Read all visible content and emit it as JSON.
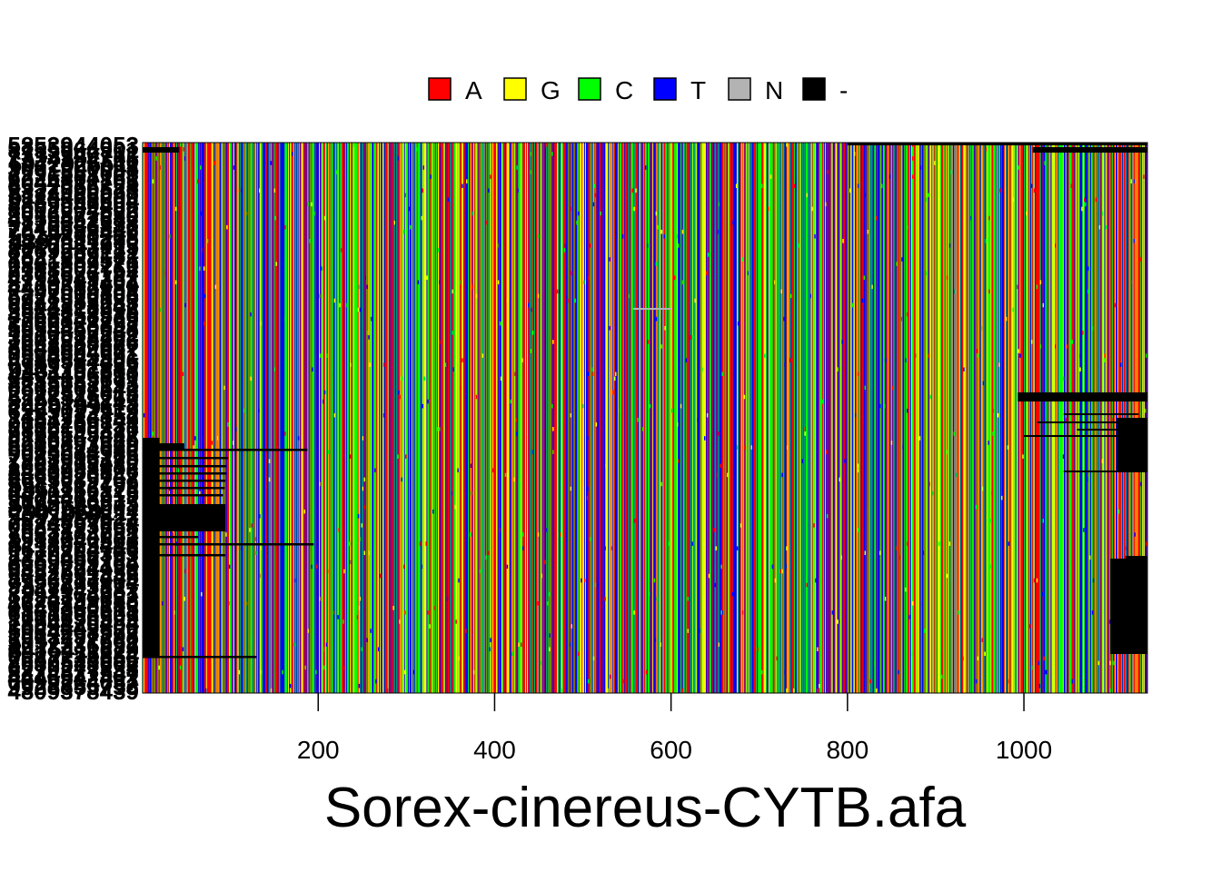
{
  "chart_data": {
    "type": "heatmap",
    "title": "Sorex-cinereus-CYTB.afa",
    "xlabel": "",
    "ylabel": "",
    "xlim": [
      1,
      1140
    ],
    "x_ticks": [
      200,
      400,
      600,
      800,
      1000
    ],
    "x_tick_labels": [
      "200",
      "400",
      "600",
      "800",
      "1000"
    ],
    "legend_position": "top-center",
    "legend": [
      {
        "symbol": "A",
        "color": "#ff0000"
      },
      {
        "symbol": "G",
        "color": "#ffff00"
      },
      {
        "symbol": "C",
        "color": "#00ff00"
      },
      {
        "symbol": "T",
        "color": "#0000ff"
      },
      {
        "symbol": "N",
        "color": "#b3b3b3"
      },
      {
        "symbol": "-",
        "color": "#000000"
      }
    ],
    "row_labels_note": "Sequence labels at left are overplotted and illegible",
    "num_sequences": 120,
    "alignment_length": 1140
  }
}
